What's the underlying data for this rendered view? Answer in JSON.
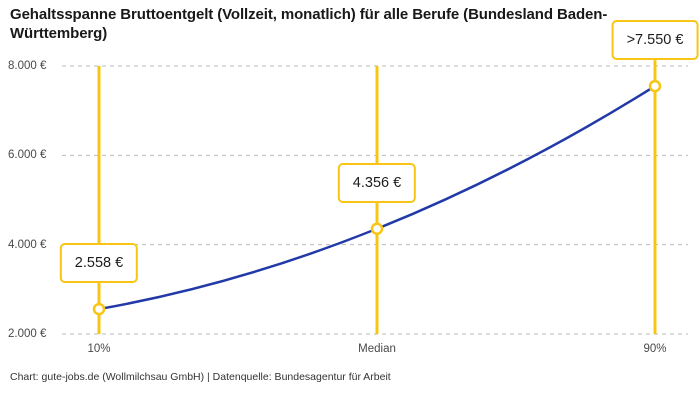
{
  "header": {
    "title": "Gehaltsspanne Bruttoentgelt (Vollzeit, monatlich) für alle Berufe (Bundesland Baden-Württemberg)"
  },
  "footer": {
    "credit": "Chart: gute-jobs.de (Wollmilchsau GmbH) | Datenquelle: Bundesagentur für Arbeit"
  },
  "colors": {
    "accent_yellow": "#F9C513",
    "line_blue": "#2239A8",
    "grid_gray": "#BBBBBB",
    "axis_text": "#494949",
    "title_text": "#191919",
    "point_fill": "#FFFFFF"
  },
  "chart_data": {
    "type": "line",
    "title": "Gehaltsspanne Bruttoentgelt (Vollzeit, monatlich) für alle Berufe (Bundesland Baden-Württemberg)",
    "categories": [
      "10%",
      "Median",
      "90%"
    ],
    "values": [
      2558,
      4356,
      7550
    ],
    "point_labels": [
      "2.558 €",
      "4.356 €",
      ">7.550 €"
    ],
    "series": [
      {
        "name": "Bruttoentgelt",
        "values": [
          2558,
          4356,
          7550
        ]
      }
    ],
    "xlabel": "",
    "ylabel": "",
    "ylim": [
      2000,
      8000
    ],
    "ytick_values": [
      2000,
      4000,
      6000,
      8000
    ],
    "ytick_labels": [
      "2.000 €",
      "4.000 €",
      "6.000 €",
      "8.000 €"
    ],
    "grid": "horizontal-dashed",
    "legend_position": "none",
    "marker_style": "open-circle",
    "annotation_style": "value-boxes-above-points"
  }
}
